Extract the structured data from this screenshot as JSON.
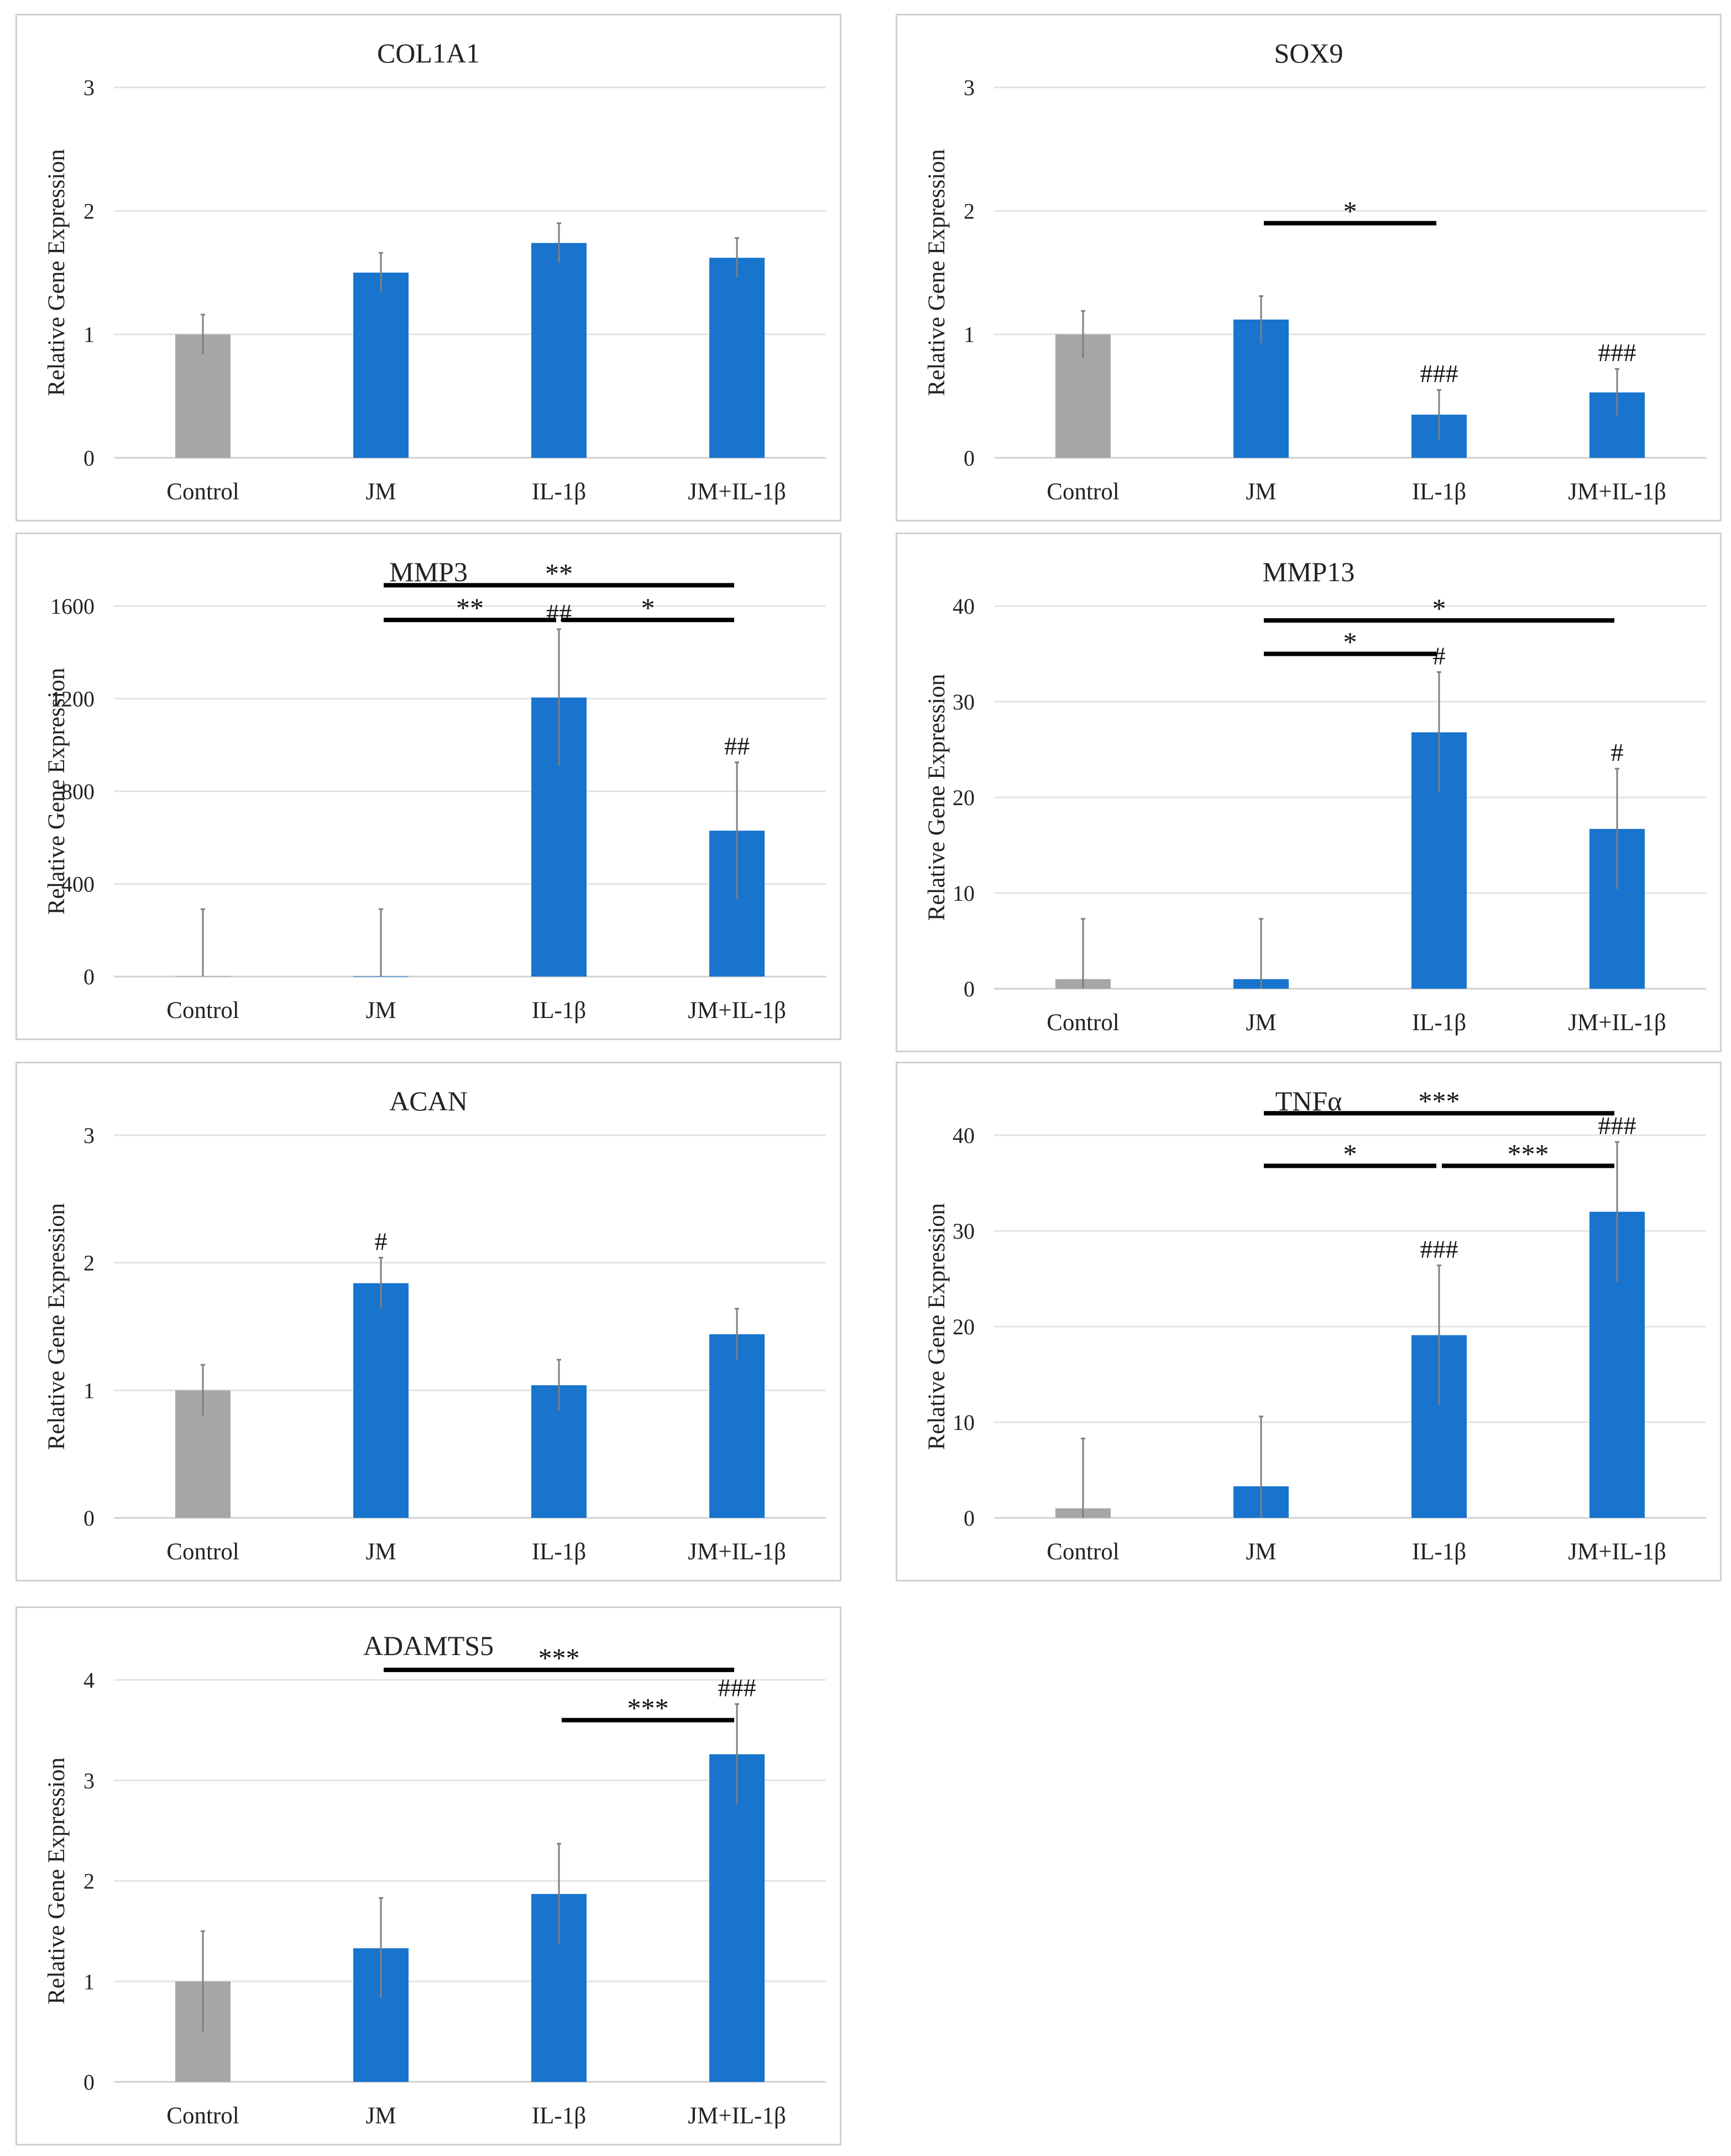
{
  "figure": {
    "ylabel": "Relative Gene Expression",
    "categories": [
      "Control",
      "JM",
      "IL-1β",
      "JM+IL-1β"
    ],
    "colors": {
      "control": "#a6a6a6",
      "treatment": "#1874cd",
      "grid": "#e3e3e3",
      "axis": "#d0d0d0",
      "error": "#7f7f7f",
      "sigline": "#000000"
    }
  },
  "chart_data": [
    {
      "id": "col1a1",
      "type": "bar",
      "title": "COL1A1",
      "ylabel": "Relative Gene Expression",
      "categories": [
        "Control",
        "JM",
        "IL-1β",
        "JM+IL-1β"
      ],
      "values": [
        1.0,
        1.5,
        1.74,
        1.62
      ],
      "errors": [
        0.16,
        0.16,
        0.16,
        0.16
      ],
      "ylim": [
        0,
        3
      ],
      "yticks": [
        0,
        1,
        2,
        3
      ],
      "hashes": [
        "",
        "",
        "",
        ""
      ],
      "significance": []
    },
    {
      "id": "sox9",
      "type": "bar",
      "title": "SOX9",
      "ylabel": "Relative Gene Expression",
      "categories": [
        "Control",
        "JM",
        "IL-1β",
        "JM+IL-1β"
      ],
      "values": [
        1.0,
        1.12,
        0.35,
        0.53
      ],
      "errors": [
        0.19,
        0.19,
        0.2,
        0.19
      ],
      "ylim": [
        0,
        3
      ],
      "yticks": [
        0,
        1,
        2,
        3
      ],
      "hashes": [
        "",
        "",
        "###",
        "###"
      ],
      "significance": [
        {
          "from": 1,
          "to": 2,
          "level": 1.9,
          "label": "*"
        }
      ]
    },
    {
      "id": "mmp3",
      "type": "bar",
      "title": "MMP3",
      "ylabel": "Relative Gene Expression",
      "categories": [
        "Control",
        "JM",
        "IL-1β",
        "JM+IL-1β"
      ],
      "values": [
        1,
        1,
        1205,
        630
      ],
      "errors": [
        290,
        290,
        295,
        295
      ],
      "ylim": [
        0,
        1600
      ],
      "yticks": [
        0,
        400,
        800,
        1200,
        1600
      ],
      "hashes": [
        "",
        "",
        "##",
        "##"
      ],
      "significance": [
        {
          "from": 1,
          "to": 3,
          "level": 1690,
          "label": "**"
        },
        {
          "from": 1,
          "to": 2,
          "level": 1540,
          "label": "**"
        },
        {
          "from": 2,
          "to": 3,
          "level": 1540,
          "label": "*"
        }
      ]
    },
    {
      "id": "mmp13",
      "type": "bar",
      "title": "MMP13",
      "ylabel": "Relative Gene Expression",
      "categories": [
        "Control",
        "JM",
        "IL-1β",
        "JM+IL-1β"
      ],
      "values": [
        1,
        1,
        26.8,
        16.7
      ],
      "errors": [
        6.3,
        6.3,
        6.3,
        6.3
      ],
      "ylim": [
        0,
        40
      ],
      "yticks": [
        0,
        10,
        20,
        30,
        40
      ],
      "hashes": [
        "",
        "",
        "#",
        "#"
      ],
      "significance": [
        {
          "from": 1,
          "to": 3,
          "level": 38.5,
          "label": "*"
        },
        {
          "from": 1,
          "to": 2,
          "level": 35.0,
          "label": "*"
        }
      ]
    },
    {
      "id": "acan",
      "type": "bar",
      "title": "ACAN",
      "ylabel": "Relative Gene Expression",
      "categories": [
        "Control",
        "JM",
        "IL-1β",
        "JM+IL-1β"
      ],
      "values": [
        1.0,
        1.84,
        1.04,
        1.44
      ],
      "errors": [
        0.2,
        0.2,
        0.2,
        0.2
      ],
      "ylim": [
        0,
        3
      ],
      "yticks": [
        0,
        1,
        2,
        3
      ],
      "hashes": [
        "",
        "#",
        "",
        ""
      ],
      "significance": []
    },
    {
      "id": "tnfa",
      "type": "bar",
      "title": "TNFα",
      "ylabel": "Relative Gene Expression",
      "categories": [
        "Control",
        "JM",
        "IL-1β",
        "JM+IL-1β"
      ],
      "values": [
        1,
        3.3,
        19.1,
        32.0
      ],
      "errors": [
        7.3,
        7.3,
        7.3,
        7.3
      ],
      "ylim": [
        0,
        40
      ],
      "yticks": [
        0,
        10,
        20,
        30,
        40
      ],
      "hashes": [
        "",
        "",
        "###",
        "###"
      ],
      "significance": [
        {
          "from": 1,
          "to": 3,
          "level": 42.3,
          "label": "***"
        },
        {
          "from": 1,
          "to": 2,
          "level": 36.8,
          "label": "*"
        },
        {
          "from": 2,
          "to": 3,
          "level": 36.8,
          "label": "***"
        }
      ]
    },
    {
      "id": "adamts5",
      "type": "bar",
      "title": "ADAMTS5",
      "ylabel": "Relative Gene Expression",
      "categories": [
        "Control",
        "JM",
        "IL-1β",
        "JM+IL-1β"
      ],
      "values": [
        1.0,
        1.33,
        1.87,
        3.26
      ],
      "errors": [
        0.5,
        0.5,
        0.5,
        0.5
      ],
      "ylim": [
        0,
        4
      ],
      "yticks": [
        0,
        1,
        2,
        3,
        4
      ],
      "hashes": [
        "",
        "",
        "",
        "###"
      ],
      "significance": [
        {
          "from": 1,
          "to": 3,
          "level": 4.1,
          "label": "***"
        },
        {
          "from": 2,
          "to": 3,
          "level": 3.6,
          "label": "***"
        }
      ]
    }
  ]
}
